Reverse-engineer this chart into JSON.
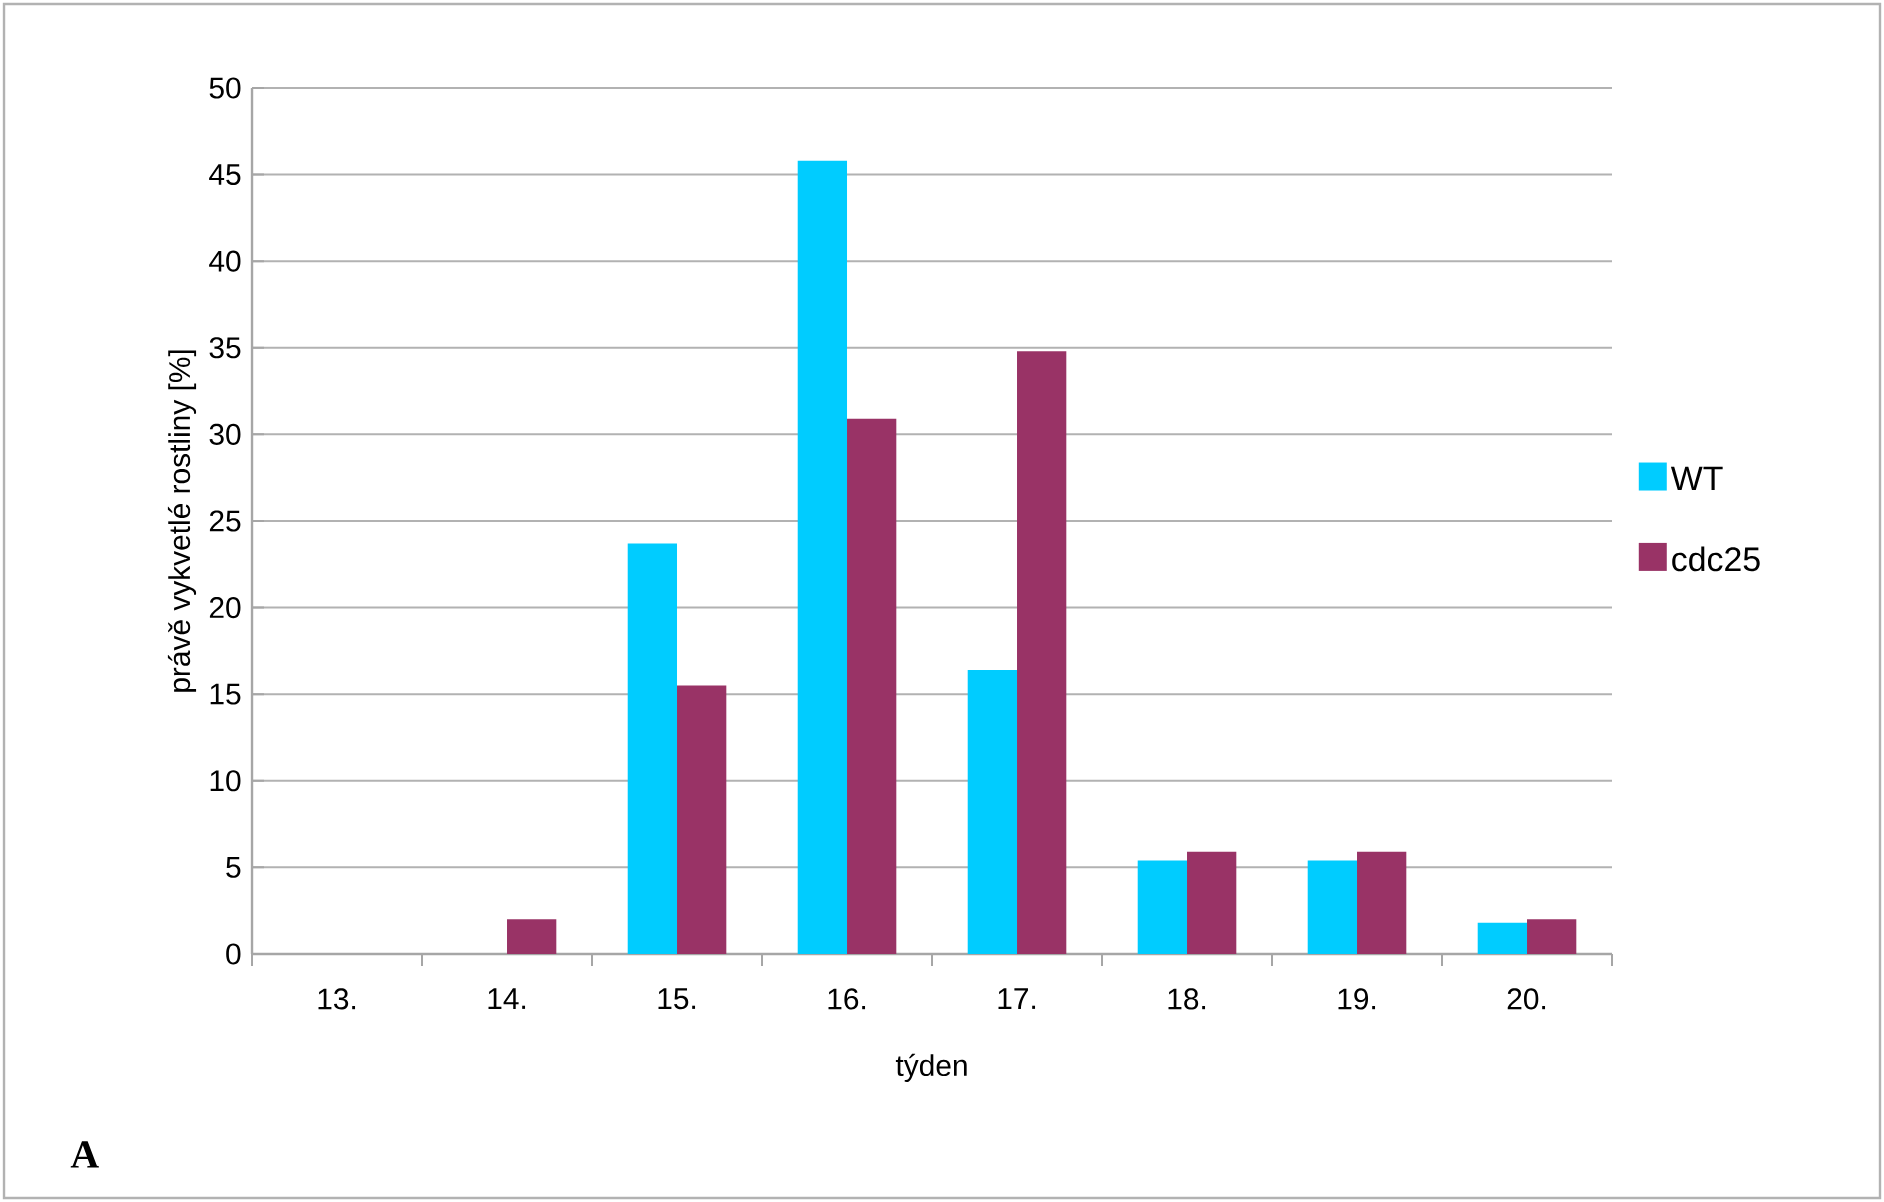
{
  "chart_data": {
    "type": "bar",
    "xlabel": "týden",
    "ylabel": "právě vykvetlé rostliny [%]",
    "categories": [
      "13.",
      "14.",
      "15.",
      "16.",
      "17.",
      "18.",
      "19.",
      "20."
    ],
    "series": [
      {
        "name": "WT",
        "color": "#00ccff",
        "values": [
          0,
          0,
          23.7,
          45.8,
          16.4,
          5.4,
          5.4,
          1.8
        ]
      },
      {
        "name": "cdc25",
        "color": "#993366",
        "values": [
          0,
          2.0,
          15.5,
          30.9,
          34.8,
          5.9,
          5.9,
          2.0
        ]
      }
    ],
    "ylim": [
      0,
      50
    ],
    "yticks": [
      0,
      5,
      10,
      15,
      20,
      25,
      30,
      35,
      40,
      45,
      50
    ],
    "grid": "y",
    "legend": "right",
    "annotations": [
      "A"
    ]
  }
}
